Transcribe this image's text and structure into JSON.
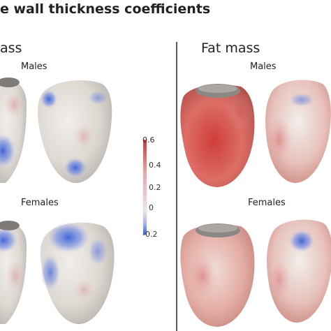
{
  "figure": {
    "title": "e wall thickness coefficients",
    "left_panel": {
      "heading": "ass",
      "row_top_label": "Males",
      "row_bottom_label": "Females"
    },
    "right_panel": {
      "heading": "Fat mass",
      "row_top_label": "Males",
      "row_bottom_label": "Females"
    }
  },
  "colorbar": {
    "ticks": [
      "0.6",
      "0.4",
      "0.2",
      "0",
      "-0.2"
    ],
    "range": [
      -0.2,
      0.6
    ],
    "colors": {
      "low": "#3a5fd8",
      "mid": "#e9e6e2",
      "high": "#c8323e"
    }
  },
  "colors": {
    "heart_neutral": "#dcd7d2",
    "heart_warm": "#d9564f",
    "heart_cool": "#5570e0",
    "divider": "#5a5a5a"
  }
}
